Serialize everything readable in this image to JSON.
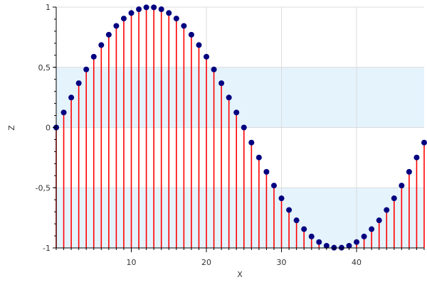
{
  "chart_data": {
    "type": "stem",
    "title": "",
    "xlabel": "X",
    "ylabel": "Z",
    "xlim": [
      0,
      49
    ],
    "ylim": [
      -1,
      1
    ],
    "x_ticks": [
      10,
      20,
      30,
      40
    ],
    "x_tick_labels": [
      "10",
      "20",
      "30",
      "40"
    ],
    "y_ticks": [
      1,
      0.5,
      0,
      -0.5,
      -1
    ],
    "y_tick_labels": [
      "1",
      "0,5",
      "0",
      "-0,5",
      "-1"
    ],
    "grid": true,
    "legend": "none",
    "bands": [
      {
        "y_from": 0,
        "y_to": 0.5
      },
      {
        "y_from": -1,
        "y_to": -0.5
      }
    ],
    "series": [
      {
        "x": [
          0,
          1,
          2,
          3,
          4,
          5,
          6,
          7,
          8,
          9,
          10,
          11,
          12,
          13,
          14,
          15,
          16,
          17,
          18,
          19,
          20,
          21,
          22,
          23,
          24,
          25,
          26,
          27,
          28,
          29,
          30,
          31,
          32,
          33,
          34,
          35,
          36,
          37,
          38,
          39,
          40,
          41,
          42,
          43,
          44,
          45,
          46,
          47,
          48,
          49
        ],
        "values": [
          0,
          0.125,
          0.249,
          0.368,
          0.482,
          0.588,
          0.685,
          0.771,
          0.844,
          0.905,
          0.951,
          0.982,
          0.998,
          0.998,
          0.982,
          0.951,
          0.905,
          0.844,
          0.771,
          0.685,
          0.588,
          0.482,
          0.368,
          0.249,
          0.125,
          0,
          -0.125,
          -0.249,
          -0.368,
          -0.482,
          -0.588,
          -0.685,
          -0.771,
          -0.844,
          -0.905,
          -0.951,
          -0.982,
          -0.998,
          -0.998,
          -0.982,
          -0.951,
          -0.905,
          -0.844,
          -0.771,
          -0.685,
          -0.588,
          -0.482,
          -0.368,
          -0.249,
          -0.125
        ]
      }
    ],
    "colors": {
      "stem": "#ff0000",
      "marker": "#000080",
      "band": "#e5f3fd",
      "grid": "#dcdcdc",
      "axis": "#000000"
    }
  }
}
